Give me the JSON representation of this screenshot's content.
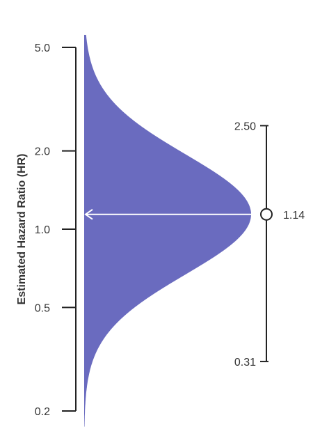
{
  "chart_data": {
    "type": "area",
    "ylabel": "Estimated Hazard Ratio (HR)",
    "yscale": "log",
    "ylim": [
      0.19,
      5.2
    ],
    "yticks": [
      0.2,
      0.5,
      1.0,
      2.0,
      5.0
    ],
    "ytick_labels": [
      "0.2",
      "0.5",
      "1.0",
      "2.0",
      "5.0"
    ],
    "density": {
      "peak_hr": 1.14,
      "fill_color": "#6a6bbf",
      "max_width_fraction": 1.0
    },
    "estimate": {
      "value": 1.14,
      "label": "1.14",
      "arrow_color": "#ffffff"
    },
    "interval": {
      "upper": 2.5,
      "lower": 0.31,
      "upper_label": "2.50",
      "lower_label": "0.31",
      "color": "#222222"
    },
    "grid": false,
    "legend": "none"
  }
}
